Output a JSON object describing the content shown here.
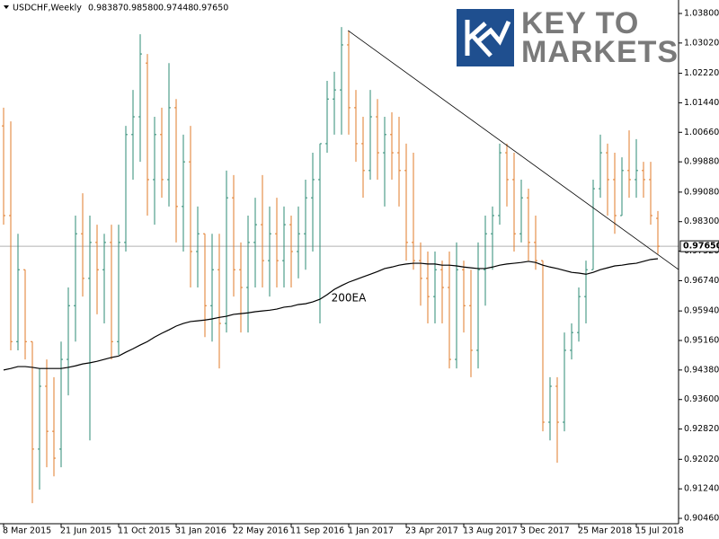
{
  "chart_data": {
    "type": "ohlc",
    "title": "USDCHF,Weekly",
    "header_labels": [
      "0.98387",
      "0.98580",
      "0.97448",
      "0.97650"
    ],
    "logo": {
      "line1": "KEY TO",
      "line2": "MARKETS"
    },
    "up_color": "#2e8b74",
    "down_color": "#e07b2a",
    "categories": [
      "8 Mar 2015",
      null,
      null,
      null,
      null,
      null,
      null,
      null,
      "21 Jun 2015",
      null,
      null,
      null,
      null,
      null,
      null,
      null,
      "11 Oct 2015",
      null,
      null,
      null,
      null,
      null,
      null,
      null,
      "31 Jan 2016",
      null,
      null,
      null,
      null,
      null,
      null,
      null,
      "22 May 2016",
      null,
      null,
      null,
      null,
      null,
      null,
      null,
      "11 Sep 2016",
      null,
      null,
      null,
      null,
      null,
      null,
      null,
      "1 Jan 2017",
      null,
      null,
      null,
      null,
      null,
      null,
      null,
      "23 Apr 2017",
      null,
      null,
      null,
      null,
      null,
      null,
      null,
      "13 Aug 2017",
      null,
      null,
      null,
      null,
      null,
      null,
      null,
      "3 Dec 2017",
      null,
      null,
      null,
      null,
      null,
      null,
      null,
      "25 Mar 2018",
      null,
      null,
      null,
      null,
      null,
      null,
      null,
      "15 Jul 2018",
      null,
      null,
      null
    ],
    "ohlc": [
      [
        1.0083,
        1.0131,
        0.9822,
        0.9846
      ],
      [
        0.9846,
        1.0095,
        0.949,
        0.9513
      ],
      [
        0.9513,
        0.9798,
        0.949,
        0.9703
      ],
      [
        0.9703,
        0.9703,
        0.9466,
        0.9513
      ],
      [
        0.9513,
        0.9513,
        0.9086,
        0.9229
      ],
      [
        0.9229,
        0.9442,
        0.9122,
        0.9395
      ],
      [
        0.9395,
        0.9466,
        0.9181,
        0.9276
      ],
      [
        0.9276,
        0.9419,
        0.9157,
        0.9205
      ],
      [
        0.9229,
        0.9513,
        0.9181,
        0.9466
      ],
      [
        0.9466,
        0.9656,
        0.9371,
        0.9608
      ],
      [
        0.9608,
        0.9846,
        0.9513,
        0.9798
      ],
      [
        0.9798,
        0.9905,
        0.9632,
        0.968
      ],
      [
        0.968,
        0.9846,
        0.9252,
        0.9775
      ],
      [
        0.9775,
        0.9822,
        0.9585,
        0.9703
      ],
      [
        0.9703,
        0.9798,
        0.9561,
        0.9775
      ],
      [
        0.9775,
        0.9822,
        0.9466,
        0.9513
      ],
      [
        0.9513,
        0.9822,
        0.9478,
        0.9775
      ],
      [
        0.9775,
        1.0083,
        0.9751,
        1.006
      ],
      [
        1.006,
        1.0178,
        0.9941,
        1.0107
      ],
      [
        1.0107,
        1.0325,
        0.9988,
        1.0273
      ],
      [
        1.0249,
        1.0273,
        0.9846,
        0.9941
      ],
      [
        0.9941,
        1.0107,
        0.9822,
        1.006
      ],
      [
        1.006,
        1.0131,
        0.9893,
        0.9941
      ],
      [
        0.9941,
        1.0249,
        0.987,
        1.0131
      ],
      [
        1.0131,
        1.0154,
        0.9775,
        0.987
      ],
      [
        0.987,
        1.006,
        0.9751,
        0.9988
      ],
      [
        0.9988,
        1.0083,
        0.9656,
        0.9751
      ],
      [
        0.9751,
        0.987,
        0.9656,
        0.9798
      ],
      [
        0.9798,
        0.9798,
        0.9525,
        0.9608
      ],
      [
        0.9608,
        0.9798,
        0.9513,
        0.9703
      ],
      [
        0.9703,
        0.9798,
        0.9442,
        0.9561
      ],
      [
        0.9561,
        0.9965,
        0.9537,
        0.9893
      ],
      [
        0.9893,
        0.9953,
        0.9632,
        0.9703
      ],
      [
        0.9703,
        0.9775,
        0.9537,
        0.9656
      ],
      [
        0.9656,
        0.9846,
        0.9537,
        0.9775
      ],
      [
        0.9775,
        0.9893,
        0.9656,
        0.9822
      ],
      [
        0.9822,
        0.9953,
        0.9656,
        0.9727
      ],
      [
        0.9727,
        0.987,
        0.9632,
        0.9798
      ],
      [
        0.9798,
        0.9893,
        0.9656,
        0.9727
      ],
      [
        0.9727,
        0.987,
        0.9656,
        0.9822
      ],
      [
        0.9822,
        0.9846,
        0.9656,
        0.9751
      ],
      [
        0.9751,
        0.987,
        0.968,
        0.9798
      ],
      [
        0.9798,
        0.9941,
        0.9703,
        0.9893
      ],
      [
        0.9893,
        1.0012,
        0.9751,
        0.9941
      ],
      [
        0.9941,
        1.0036,
        0.9561,
        1.0036
      ],
      [
        1.0036,
        1.0202,
        1.0012,
        1.0154
      ],
      [
        1.0154,
        1.0226,
        1.006,
        1.0178
      ],
      [
        1.0178,
        1.0344,
        1.006,
        1.0297
      ],
      [
        1.0297,
        1.0333,
        1.006,
        1.0131
      ],
      [
        1.0131,
        1.0178,
        0.9988,
        1.0036
      ],
      [
        1.0036,
        1.0107,
        0.9893,
        0.9965
      ],
      [
        0.9965,
        1.0178,
        0.9941,
        1.0107
      ],
      [
        1.0107,
        1.0154,
        0.9941,
        1.0012
      ],
      [
        1.0012,
        1.0107,
        0.987,
        1.006
      ],
      [
        1.006,
        1.0119,
        0.9941,
        1.0012
      ],
      [
        1.0012,
        1.0107,
        0.987,
        0.9965
      ],
      [
        0.9965,
        1.0036,
        0.9727,
        0.9775
      ],
      [
        0.9775,
        1.0012,
        0.9703,
        0.9727
      ],
      [
        0.9727,
        0.9775,
        0.9608,
        0.968
      ],
      [
        0.968,
        0.9751,
        0.9561,
        0.9632
      ],
      [
        0.9632,
        0.9751,
        0.9561,
        0.9703
      ],
      [
        0.9703,
        0.9727,
        0.9561,
        0.9656
      ],
      [
        0.9656,
        0.9751,
        0.9442,
        0.9466
      ],
      [
        0.9466,
        0.9775,
        0.9442,
        0.9703
      ],
      [
        0.9703,
        0.9727,
        0.9537,
        0.9608
      ],
      [
        0.9608,
        0.9703,
        0.9419,
        0.949
      ],
      [
        0.949,
        0.9775,
        0.9442,
        0.9703
      ],
      [
        0.9703,
        0.9846,
        0.9608,
        0.9798
      ],
      [
        0.9798,
        0.987,
        0.9703,
        0.9846
      ],
      [
        0.9846,
        1.0036,
        0.9822,
        1.0012
      ],
      [
        1.0012,
        1.0036,
        0.987,
        0.9941
      ],
      [
        0.9941,
        1.0012,
        0.9751,
        0.9798
      ],
      [
        0.9798,
        0.9941,
        0.9775,
        0.9893
      ],
      [
        0.9893,
        0.9917,
        0.9727,
        0.9775
      ],
      [
        0.9775,
        0.9846,
        0.9703,
        0.9727
      ],
      [
        0.9727,
        0.9727,
        0.9276,
        0.93
      ],
      [
        0.93,
        0.9419,
        0.9252,
        0.9395
      ],
      [
        0.9395,
        0.9419,
        0.9193,
        0.93
      ],
      [
        0.93,
        0.9537,
        0.9276,
        0.949
      ],
      [
        0.949,
        0.9561,
        0.9466,
        0.9537
      ],
      [
        0.9537,
        0.9656,
        0.9513,
        0.9632
      ],
      [
        0.9632,
        0.9727,
        0.9561,
        0.9703
      ],
      [
        0.9703,
        0.9941,
        0.9703,
        0.9917
      ],
      [
        0.9917,
        1.006,
        0.9893,
        1.0012
      ],
      [
        1.0012,
        1.0036,
        0.9846,
        0.9941
      ],
      [
        0.9941,
        1.0012,
        0.9798,
        0.9846
      ],
      [
        0.9846,
        1.0,
        0.9846,
        0.9965
      ],
      [
        0.9965,
        1.0071,
        0.9893,
        0.9941
      ],
      [
        0.9941,
        1.0048,
        0.9893,
        0.9965
      ],
      [
        0.9965,
        0.9988,
        0.9893,
        0.9941
      ],
      [
        0.9941,
        0.9988,
        0.9822,
        0.9846
      ],
      [
        0.98387,
        0.9858,
        0.97448,
        0.9765
      ]
    ],
    "series": [
      {
        "name": "200EA",
        "color": "#000000",
        "values": [
          0.9438,
          0.9442,
          0.9447,
          0.9447,
          0.9445,
          0.9442,
          0.9442,
          0.9442,
          0.9442,
          0.9445,
          0.9449,
          0.9454,
          0.9457,
          0.9461,
          0.9466,
          0.9471,
          0.9475,
          0.9485,
          0.9494,
          0.9504,
          0.9513,
          0.9525,
          0.9535,
          0.9544,
          0.9554,
          0.9561,
          0.9566,
          0.9568,
          0.957,
          0.9573,
          0.9577,
          0.958,
          0.9585,
          0.9587,
          0.9589,
          0.9592,
          0.9594,
          0.9596,
          0.9599,
          0.9604,
          0.9606,
          0.9611,
          0.9613,
          0.9618,
          0.9625,
          0.9637,
          0.9651,
          0.9661,
          0.967,
          0.9677,
          0.9684,
          0.9691,
          0.9698,
          0.9706,
          0.971,
          0.9715,
          0.9718,
          0.972,
          0.972,
          0.9718,
          0.9718,
          0.9715,
          0.9715,
          0.9713,
          0.971,
          0.9708,
          0.9706,
          0.9706,
          0.971,
          0.9715,
          0.9718,
          0.972,
          0.9722,
          0.9725,
          0.9722,
          0.9715,
          0.971,
          0.9706,
          0.9701,
          0.9696,
          0.9694,
          0.9691,
          0.9696,
          0.9703,
          0.9708,
          0.9713,
          0.9715,
          0.9718,
          0.972,
          0.9725,
          0.973,
          0.9732
        ]
      }
    ],
    "trendline": {
      "x": [
        47.9,
        93.9
      ],
      "y": [
        1.0335,
        0.9703
      ]
    },
    "last_price": {
      "value": 0.9765,
      "label": "0.97650"
    },
    "ylim": [
      0.90318,
      1.04156
    ],
    "yticks": [
      {
        "value": 1.038,
        "label": "1.03800"
      },
      {
        "value": 1.0302,
        "label": "1.03020"
      },
      {
        "value": 1.0222,
        "label": "1.02220"
      },
      {
        "value": 1.0144,
        "label": "1.01440"
      },
      {
        "value": 1.0066,
        "label": "1.00660"
      },
      {
        "value": 0.9988,
        "label": "0.99880"
      },
      {
        "value": 0.9908,
        "label": "0.99080"
      },
      {
        "value": 0.983,
        "label": "0.98300"
      },
      {
        "value": 0.9752,
        "label": "0.97520"
      },
      {
        "value": 0.9674,
        "label": "0.96740"
      },
      {
        "value": 0.9594,
        "label": "0.95940"
      },
      {
        "value": 0.9516,
        "label": "0.95160"
      },
      {
        "value": 0.9438,
        "label": "0.94380"
      },
      {
        "value": 0.936,
        "label": "0.93600"
      },
      {
        "value": 0.9282,
        "label": "0.92820"
      },
      {
        "value": 0.9202,
        "label": "0.92020"
      },
      {
        "value": 0.9124,
        "label": "0.91240"
      },
      {
        "value": 0.9046,
        "label": "0.90460"
      }
    ]
  }
}
